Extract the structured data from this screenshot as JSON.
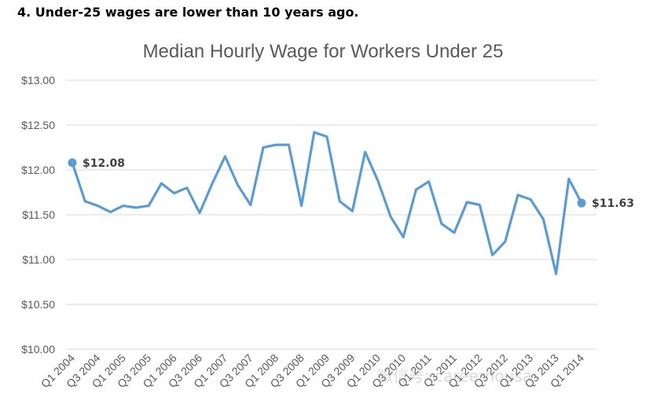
{
  "headline": "4. Under-25 wages are lower than 10 years ago.",
  "watermark": "微信号: careerhousa",
  "chart_data": {
    "type": "line",
    "title": "Median Hourly Wage for Workers Under 25",
    "xlabel": "",
    "ylabel": "",
    "ylim": [
      10.0,
      13.0
    ],
    "yticks": [
      "$10.00",
      "$10.50",
      "$11.00",
      "$11.50",
      "$12.00",
      "$12.50",
      "$13.00"
    ],
    "x": [
      "Q1 2004",
      "Q2 2004",
      "Q3 2004",
      "Q4 2004",
      "Q1 2005",
      "Q2 2005",
      "Q3 2005",
      "Q4 2005",
      "Q1 2006",
      "Q2 2006",
      "Q3 2006",
      "Q4 2006",
      "Q1 2007",
      "Q2 2007",
      "Q3 2007",
      "Q4 2007",
      "Q1 2008",
      "Q2 2008",
      "Q3 2008",
      "Q4 2008",
      "Q1 2009",
      "Q2 2009",
      "Q3 2009",
      "Q4 2009",
      "Q1 2010",
      "Q2 2010",
      "Q3 2010",
      "Q4 2010",
      "Q1 2011",
      "Q2 2011",
      "Q3 2011",
      "Q4 2011",
      "Q1 2012",
      "Q2 2012",
      "Q3 2012",
      "Q4 2012",
      "Q1 2013",
      "Q2 2013",
      "Q3 2013",
      "Q4 2013",
      "Q1 2014"
    ],
    "xticks_shown": [
      "Q1 2004",
      "Q3 2004",
      "Q1 2005",
      "Q3 2005",
      "Q1 2006",
      "Q3 2006",
      "Q1 2007",
      "Q3 2007",
      "Q1 2008",
      "Q3 2008",
      "Q1 2009",
      "Q3 2009",
      "Q1 2010",
      "Q3 2010",
      "Q1 2011",
      "Q3 2011",
      "Q1 2012",
      "Q3 2012",
      "Q1 2013",
      "Q3 2013",
      "Q1 2014"
    ],
    "series": [
      {
        "color": "#5b9bd5",
        "values": [
          12.08,
          11.65,
          11.6,
          11.53,
          11.6,
          11.58,
          11.6,
          11.85,
          11.74,
          11.8,
          11.52,
          11.85,
          12.15,
          11.83,
          11.61,
          12.25,
          12.28,
          12.28,
          11.6,
          12.42,
          12.37,
          11.65,
          11.54,
          12.2,
          11.88,
          11.48,
          11.25,
          11.78,
          11.87,
          11.4,
          11.3,
          11.64,
          11.61,
          11.05,
          11.2,
          11.72,
          11.67,
          11.45,
          10.84,
          11.9,
          11.63
        ]
      }
    ],
    "data_labels": [
      {
        "index": 0,
        "text": "$12.08"
      },
      {
        "index": 40,
        "text": "$11.63"
      }
    ],
    "grid": true,
    "legend": "none"
  }
}
